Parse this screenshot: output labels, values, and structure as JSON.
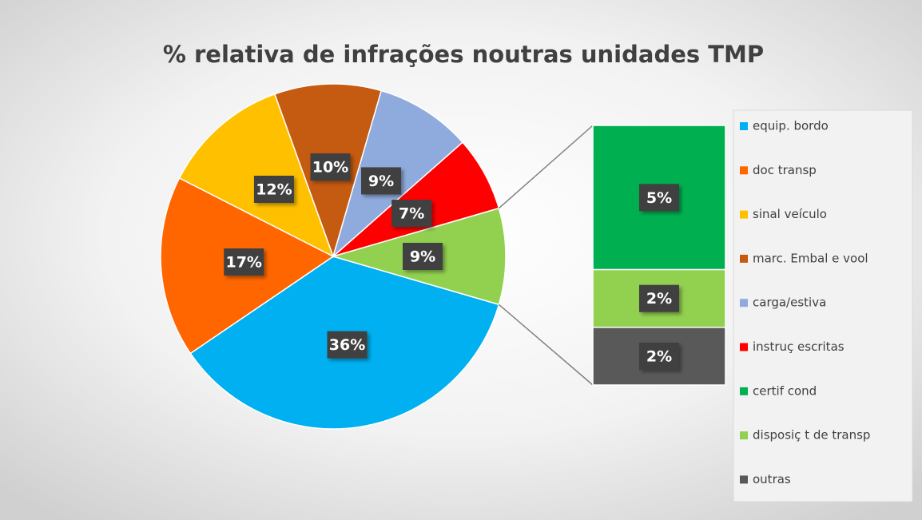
{
  "chart_data": {
    "type": "bar-of-pie",
    "title": "% relativa de infrações noutras unidades TMP",
    "pie": {
      "categories": [
        "equip. bordo",
        "doc transp",
        "sinal veículo",
        "marc. Embal e vool",
        "carga/estiva",
        "instruç escritas"
      ],
      "values": [
        36,
        17,
        12,
        10,
        9,
        7
      ],
      "value_labels": [
        "36%",
        "17%",
        "12%",
        "10%",
        "9%",
        "7%"
      ],
      "colors": [
        "#00b0f0",
        "#ff6600",
        "#ffc000",
        "#c55a11",
        "#8faadc",
        "#ff0000"
      ]
    },
    "other_slice": {
      "value": 9,
      "value_label": "9%",
      "color": "#92d050"
    },
    "bar": {
      "categories": [
        "certif cond",
        "disposiç t de transp",
        "outras"
      ],
      "values": [
        5,
        2,
        2
      ],
      "value_labels": [
        "5%",
        "2%",
        "2%"
      ],
      "colors": [
        "#00b050",
        "#92d050",
        "#595959"
      ]
    }
  }
}
